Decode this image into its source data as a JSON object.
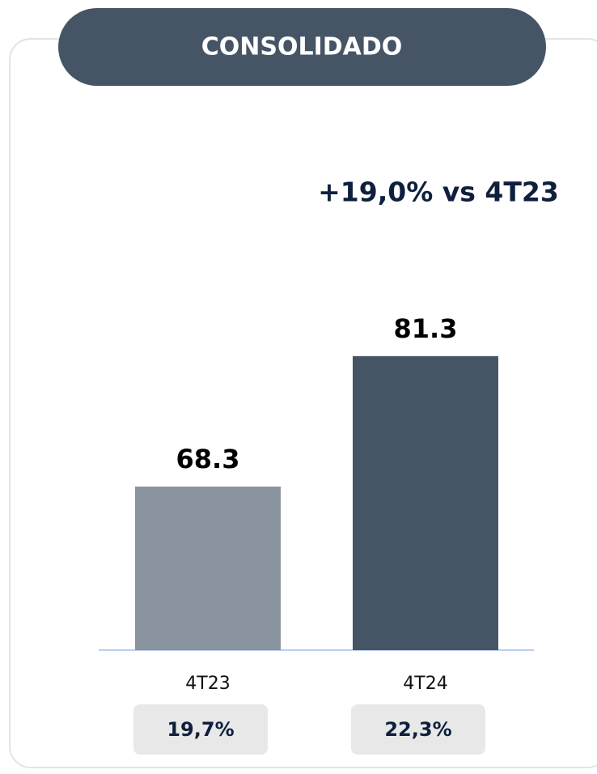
{
  "chart_data": {
    "type": "bar",
    "title": "CONSOLIDADO",
    "annotation": "+19,0% vs 4T23",
    "categories": [
      "4T23",
      "4T24"
    ],
    "values": [
      68.3,
      81.3
    ],
    "colors": [
      "#8a94a1",
      "#465566"
    ],
    "ylim": [
      52,
      85
    ],
    "footnotes": [
      "19,7%",
      "22,3%"
    ]
  }
}
